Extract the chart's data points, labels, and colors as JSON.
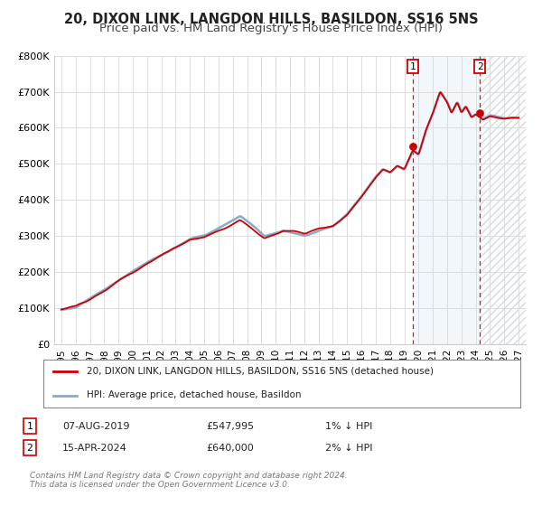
{
  "title_line1": "20, DIXON LINK, LANGDON HILLS, BASILDON, SS16 5NS",
  "title_line2": "Price paid vs. HM Land Registry's House Price Index (HPI)",
  "ylim": [
    0,
    800000
  ],
  "yticks": [
    0,
    100000,
    200000,
    300000,
    400000,
    500000,
    600000,
    700000,
    800000
  ],
  "ytick_labels": [
    "£0",
    "£100K",
    "£200K",
    "£300K",
    "£400K",
    "£500K",
    "£600K",
    "£700K",
    "£800K"
  ],
  "xlim_start": 1994.5,
  "xlim_end": 2027.5,
  "xticks": [
    1995,
    1996,
    1997,
    1998,
    1999,
    2000,
    2001,
    2002,
    2003,
    2004,
    2005,
    2006,
    2007,
    2008,
    2009,
    2010,
    2011,
    2012,
    2013,
    2014,
    2015,
    2016,
    2017,
    2018,
    2019,
    2020,
    2021,
    2022,
    2023,
    2024,
    2025,
    2026,
    2027
  ],
  "line1_color": "#cc0000",
  "line2_color": "#88aacc",
  "line1_label": "20, DIXON LINK, LANGDON HILLS, BASILDON, SS16 5NS (detached house)",
  "line2_label": "HPI: Average price, detached house, Basildon",
  "point1_year": 2019.6,
  "point1_value": 547995,
  "point1_label": "1",
  "point1_date": "07-AUG-2019",
  "point1_price": "£547,995",
  "point1_hpi": "1% ↓ HPI",
  "point2_year": 2024.29,
  "point2_value": 640000,
  "point2_label": "2",
  "point2_date": "15-APR-2024",
  "point2_price": "£640,000",
  "point2_hpi": "2% ↓ HPI",
  "background_color": "#ffffff",
  "grid_color": "#dddddd",
  "footer_text": "Contains HM Land Registry data © Crown copyright and database right 2024.\nThis data is licensed under the Open Government Licence v3.0."
}
